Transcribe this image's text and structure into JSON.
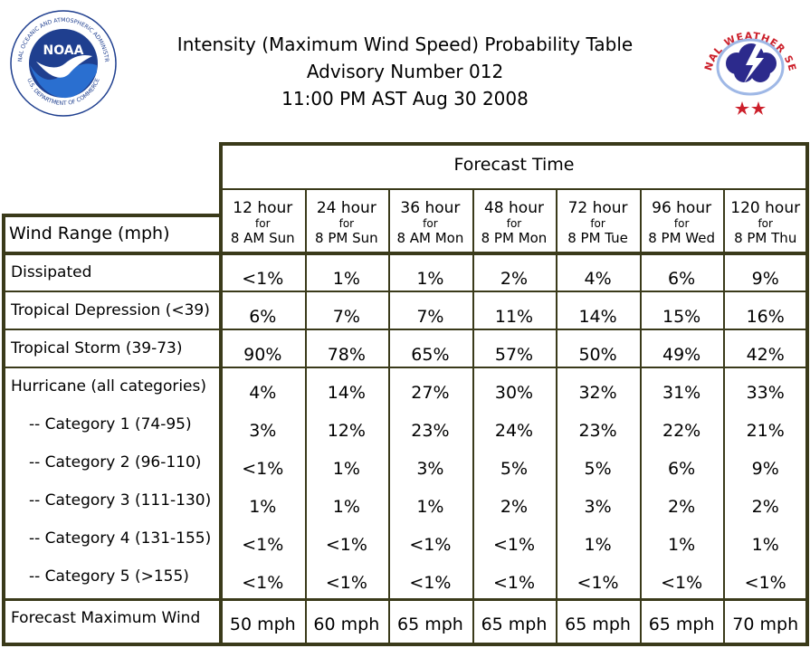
{
  "header": {
    "title": "Intensity (Maximum Wind Speed) Probability Table",
    "advisory": "Advisory Number 012",
    "issued": "11:00 PM AST Aug 30 2008"
  },
  "logos": {
    "noaa_text": "NOAA",
    "noaa_ring_top": "NATIONAL OCEANIC AND ATMOSPHERIC ADMINISTRATION",
    "noaa_ring_bottom": "U.S. DEPARTMENT OF COMMERCE",
    "nws_ring": "NATIONAL WEATHER SERVICE"
  },
  "colors": {
    "border": "#3a3a1a",
    "noaa_blue": "#1f3f8f",
    "nws_red": "#cc1f2a"
  },
  "chart_data": {
    "type": "table",
    "title": "Intensity (Maximum Wind Speed) Probability Table",
    "group_header": "Forecast Time",
    "row_header": "Wind Range (mph)",
    "columns": [
      {
        "hours": "12 hour",
        "for": "for",
        "when": "8 AM Sun"
      },
      {
        "hours": "24 hour",
        "for": "for",
        "when": "8 PM Sun"
      },
      {
        "hours": "36 hour",
        "for": "for",
        "when": "8 AM Mon"
      },
      {
        "hours": "48 hour",
        "for": "for",
        "when": "8 PM Mon"
      },
      {
        "hours": "72 hour",
        "for": "for",
        "when": "8 PM Tue"
      },
      {
        "hours": "96 hour",
        "for": "for",
        "when": "8 PM Wed"
      },
      {
        "hours": "120 hour",
        "for": "for",
        "when": "8 PM Thu"
      }
    ],
    "rows": [
      {
        "label": "Dissipated",
        "values": [
          "<1%",
          "1%",
          "1%",
          "2%",
          "4%",
          "6%",
          "9%"
        ]
      },
      {
        "label": "Tropical Depression (<39)",
        "values": [
          "6%",
          "7%",
          "7%",
          "11%",
          "14%",
          "15%",
          "16%"
        ]
      },
      {
        "label": "Tropical Storm (39-73)",
        "values": [
          "90%",
          "78%",
          "65%",
          "57%",
          "50%",
          "49%",
          "42%"
        ]
      },
      {
        "label": "Hurricane (all categories)",
        "values": [
          "4%",
          "14%",
          "27%",
          "30%",
          "32%",
          "31%",
          "33%"
        ]
      },
      {
        "label": "-- Category 1 (74-95)",
        "values": [
          "3%",
          "12%",
          "23%",
          "24%",
          "23%",
          "22%",
          "21%"
        ]
      },
      {
        "label": "-- Category 2 (96-110)",
        "values": [
          "<1%",
          "1%",
          "3%",
          "5%",
          "5%",
          "6%",
          "9%"
        ]
      },
      {
        "label": "-- Category 3 (111-130)",
        "values": [
          "1%",
          "1%",
          "1%",
          "2%",
          "3%",
          "2%",
          "2%"
        ]
      },
      {
        "label": "-- Category 4 (131-155)",
        "values": [
          "<1%",
          "<1%",
          "<1%",
          "<1%",
          "1%",
          "1%",
          "1%"
        ]
      },
      {
        "label": "-- Category 5 (>155)",
        "values": [
          "<1%",
          "<1%",
          "<1%",
          "<1%",
          "<1%",
          "<1%",
          "<1%"
        ]
      },
      {
        "label": "Forecast Maximum Wind",
        "values": [
          "50 mph",
          "60 mph",
          "65 mph",
          "65 mph",
          "65 mph",
          "65 mph",
          "70 mph"
        ]
      }
    ]
  }
}
